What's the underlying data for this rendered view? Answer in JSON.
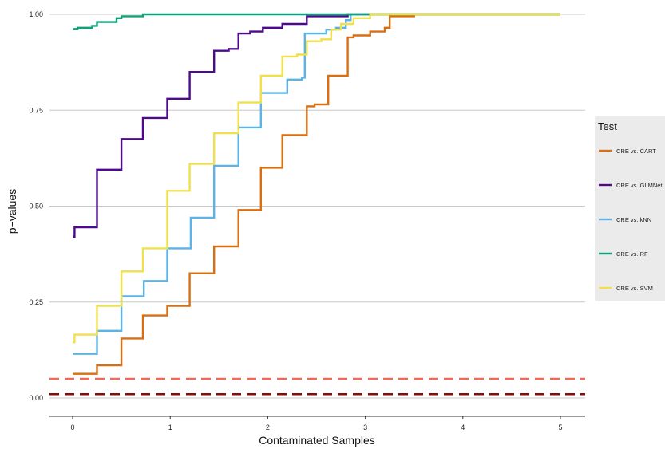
{
  "chart_data": {
    "type": "line",
    "xlabel": "Contaminated Samples",
    "ylabel": "p−values",
    "xlim": [
      -0.25,
      5.25
    ],
    "ylim": [
      -0.05,
      1.0
    ],
    "x_ticks": [
      0,
      1,
      2,
      3,
      4,
      5
    ],
    "x_tick_labels": [
      "0",
      "1",
      "2",
      "3",
      "4",
      "5"
    ],
    "y_ticks": [
      0.0,
      0.25,
      0.5,
      0.75,
      1.0
    ],
    "y_tick_labels": [
      "0.00",
      "0.25",
      "0.50",
      "0.75",
      "1.00"
    ],
    "grid": "horizontal",
    "legend": {
      "title": "Test",
      "position": "right"
    },
    "series": [
      {
        "name": "CRE vs. CART",
        "color": "#d86f12",
        "step": true,
        "points": [
          [
            0,
            0.063
          ],
          [
            0.25,
            0.085
          ],
          [
            0.5,
            0.155
          ],
          [
            0.72,
            0.215
          ],
          [
            0.97,
            0.24
          ],
          [
            1.2,
            0.325
          ],
          [
            1.45,
            0.395
          ],
          [
            1.7,
            0.49
          ],
          [
            1.93,
            0.6
          ],
          [
            2.15,
            0.685
          ],
          [
            2.4,
            0.76
          ],
          [
            2.48,
            0.765
          ],
          [
            2.62,
            0.84
          ],
          [
            2.82,
            0.94
          ],
          [
            2.88,
            0.945
          ],
          [
            3.05,
            0.955
          ],
          [
            3.2,
            0.965
          ],
          [
            3.25,
            0.995
          ],
          [
            3.5,
            1.0
          ],
          [
            5,
            1.0
          ]
        ]
      },
      {
        "name": "CRE vs. GLMNet",
        "color": "#4d0a8c",
        "step": true,
        "points": [
          [
            0,
            0.42
          ],
          [
            0.02,
            0.445
          ],
          [
            0.25,
            0.595
          ],
          [
            0.5,
            0.675
          ],
          [
            0.72,
            0.73
          ],
          [
            0.97,
            0.78
          ],
          [
            1.2,
            0.85
          ],
          [
            1.45,
            0.905
          ],
          [
            1.6,
            0.91
          ],
          [
            1.7,
            0.95
          ],
          [
            1.82,
            0.955
          ],
          [
            1.95,
            0.965
          ],
          [
            2.15,
            0.975
          ],
          [
            2.4,
            0.995
          ],
          [
            2.82,
            1.0
          ],
          [
            5,
            1.0
          ]
        ]
      },
      {
        "name": "CRE vs. kNN",
        "color": "#5bb4e5",
        "step": true,
        "points": [
          [
            0,
            0.115
          ],
          [
            0.25,
            0.175
          ],
          [
            0.5,
            0.265
          ],
          [
            0.73,
            0.305
          ],
          [
            0.97,
            0.39
          ],
          [
            1.21,
            0.47
          ],
          [
            1.45,
            0.605
          ],
          [
            1.7,
            0.705
          ],
          [
            1.93,
            0.795
          ],
          [
            2.2,
            0.83
          ],
          [
            2.35,
            0.835
          ],
          [
            2.38,
            0.95
          ],
          [
            2.6,
            0.96
          ],
          [
            2.7,
            0.965
          ],
          [
            2.8,
            0.985
          ],
          [
            2.85,
            1.0
          ],
          [
            5,
            1.0
          ]
        ]
      },
      {
        "name": "CRE vs. RF",
        "color": "#12a07a",
        "step": true,
        "points": [
          [
            0,
            0.962
          ],
          [
            0.05,
            0.965
          ],
          [
            0.2,
            0.97
          ],
          [
            0.25,
            0.98
          ],
          [
            0.45,
            0.99
          ],
          [
            0.5,
            0.995
          ],
          [
            0.72,
            1.0
          ],
          [
            5,
            1.0
          ]
        ]
      },
      {
        "name": "CRE vs. SVM",
        "color": "#f0e04a",
        "step": true,
        "points": [
          [
            0,
            0.145
          ],
          [
            0.02,
            0.165
          ],
          [
            0.25,
            0.24
          ],
          [
            0.5,
            0.33
          ],
          [
            0.72,
            0.39
          ],
          [
            0.97,
            0.54
          ],
          [
            1.2,
            0.61
          ],
          [
            1.45,
            0.69
          ],
          [
            1.7,
            0.77
          ],
          [
            1.93,
            0.84
          ],
          [
            2.15,
            0.89
          ],
          [
            2.3,
            0.895
          ],
          [
            2.4,
            0.93
          ],
          [
            2.55,
            0.935
          ],
          [
            2.65,
            0.96
          ],
          [
            2.75,
            0.975
          ],
          [
            2.88,
            0.99
          ],
          [
            3.05,
            1.0
          ],
          [
            5,
            1.0
          ]
        ]
      }
    ],
    "reference_lines": [
      {
        "y": 0.05,
        "color": "#f06a5a",
        "dash": true
      },
      {
        "y": 0.01,
        "color": "#8b0a0a",
        "dash": true
      }
    ]
  }
}
